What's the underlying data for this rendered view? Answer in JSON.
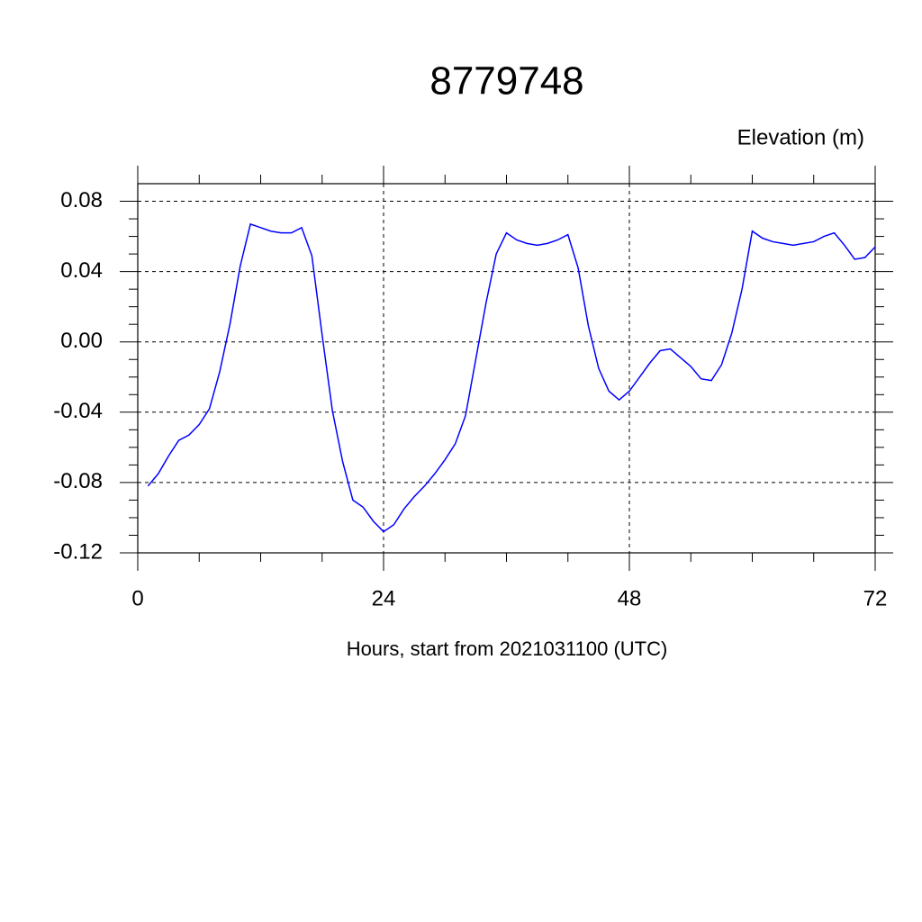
{
  "chart_data": {
    "type": "line",
    "title": "8779748",
    "subtitle": "Elevation (m)",
    "x_label": "Hours, start from 2021031100 (UTC)",
    "x": [
      1,
      2,
      3,
      4,
      5,
      6,
      7,
      8,
      9,
      10,
      11,
      12,
      13,
      14,
      15,
      16,
      17,
      18,
      19,
      20,
      21,
      22,
      23,
      24,
      25,
      26,
      27,
      28,
      29,
      30,
      31,
      32,
      33,
      34,
      35,
      36,
      37,
      38,
      39,
      40,
      41,
      42,
      43,
      44,
      45,
      46,
      47,
      48,
      49,
      50,
      51,
      52,
      53,
      54,
      55,
      56,
      57,
      58,
      59,
      60,
      61,
      62,
      63,
      64,
      65,
      66,
      67,
      68,
      69,
      70,
      71,
      72
    ],
    "series": [
      {
        "color": "#0000ff",
        "values": [
          -0.082,
          -0.075,
          -0.065,
          -0.056,
          -0.053,
          -0.047,
          -0.038,
          -0.017,
          0.01,
          0.043,
          0.067,
          0.065,
          0.063,
          0.062,
          0.062,
          0.065,
          0.049,
          0.004,
          -0.039,
          -0.068,
          -0.09,
          -0.094,
          -0.102,
          -0.108,
          -0.104,
          -0.095,
          -0.088,
          -0.082,
          -0.075,
          -0.067,
          -0.058,
          -0.042,
          -0.01,
          0.022,
          0.05,
          0.062,
          0.058,
          0.056,
          0.055,
          0.056,
          0.058,
          0.061,
          0.042,
          0.009,
          -0.015,
          -0.028,
          -0.033,
          -0.028,
          -0.02,
          -0.012,
          -0.005,
          -0.004,
          -0.009,
          -0.014,
          -0.021,
          -0.022,
          -0.013,
          0.005,
          0.03,
          0.063,
          0.059,
          0.057,
          0.056,
          0.055,
          0.056,
          0.057,
          0.06,
          0.062,
          0.055,
          0.047,
          0.048,
          0.054
        ]
      }
    ],
    "xlim": [
      0,
      72
    ],
    "xticks": [
      0,
      24,
      48,
      72
    ],
    "ylim": [
      -0.12,
      0.09
    ],
    "yticks": [
      -0.12,
      -0.08,
      -0.04,
      {
        "value": 0,
        "label": "0.00"
      },
      0.04,
      0.08
    ],
    "grid": true
  }
}
